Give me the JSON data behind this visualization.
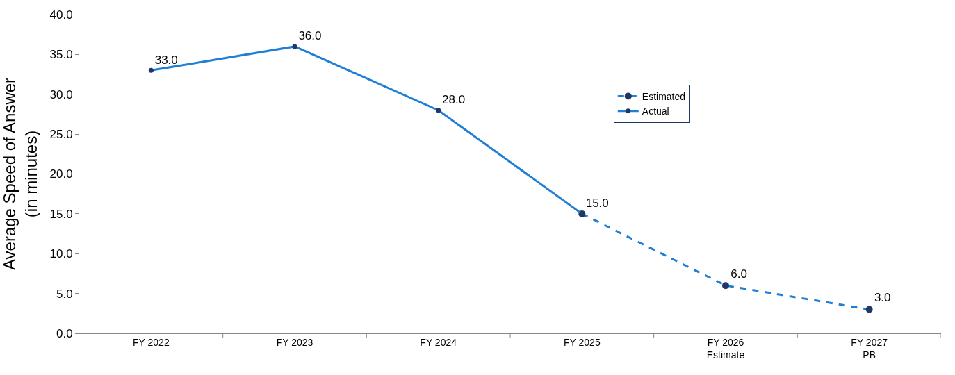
{
  "chart_data": {
    "type": "line",
    "ylabel": "Average Speed of Answer\n(in minutes)",
    "categories": [
      "FY 2022",
      "FY 2023",
      "FY 2024",
      "FY 2025",
      "FY 2026\nEstimate",
      "FY 2027\nPB"
    ],
    "series": [
      {
        "name": "Actual",
        "color": "#1f7fd6",
        "line_style": "solid",
        "values": [
          33,
          36,
          28,
          15,
          null,
          null
        ],
        "value_labels": [
          "33.0",
          "36.0",
          "28.0",
          "15.0",
          null,
          null
        ]
      },
      {
        "name": "Estimated",
        "color": "#1f7fd6",
        "line_style": "dashed",
        "values": [
          null,
          null,
          null,
          15,
          6,
          3
        ],
        "value_labels": [
          null,
          null,
          null,
          null,
          "6.0",
          "3.0"
        ]
      }
    ],
    "ylim": [
      0,
      40
    ],
    "yticks": [
      {
        "value": 0,
        "label": "0.0"
      },
      {
        "value": 5,
        "label": "5.0"
      },
      {
        "value": 10,
        "label": "10.0"
      },
      {
        "value": 15,
        "label": "15.0"
      },
      {
        "value": 20,
        "label": "20.0"
      },
      {
        "value": 25,
        "label": "25.0"
      },
      {
        "value": 30,
        "label": "30.0"
      },
      {
        "value": 35,
        "label": "35.0"
      },
      {
        "value": 40,
        "label": "40.0"
      }
    ],
    "grid": false,
    "legend": "right",
    "marker": "circle"
  }
}
